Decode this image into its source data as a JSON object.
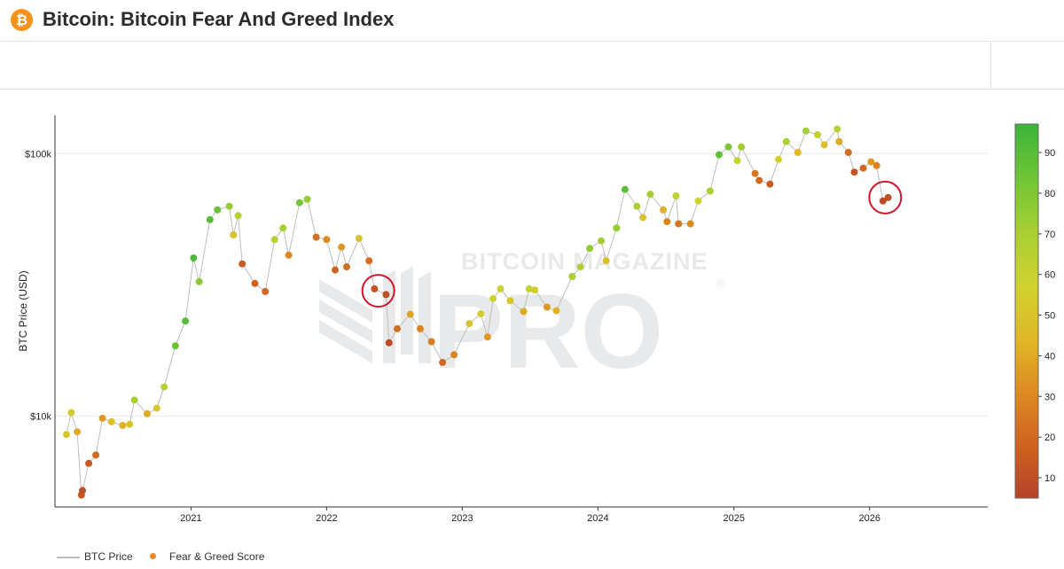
{
  "header": {
    "logo_glyph": "₿",
    "title": "Bitcoin: Bitcoin Fear And Greed Index"
  },
  "watermark": {
    "line1": "BITCOIN MAGAZINE",
    "line2": "PRO",
    "registered": "®"
  },
  "legend": {
    "items": [
      {
        "label": "BTC Price",
        "kind": "line",
        "color": "#bdbdbd"
      },
      {
        "label": "Fear & Greed Score",
        "kind": "marker",
        "color": "#e8862a"
      }
    ]
  },
  "colors": {
    "scale": [
      "#b5432a",
      "#d0621f",
      "#de8c22",
      "#e0b827",
      "#cfd231",
      "#a6cf33",
      "#6fc535",
      "#3bb33a"
    ],
    "annotation": "#d0152b",
    "grid": "#e8e8e8",
    "price_line": "#bdbdbd"
  },
  "chart_data": {
    "type": "scatter",
    "ylabel": "BTC Price (USD)",
    "y_scale": "log",
    "ylim": [
      4500,
      140000
    ],
    "xlim": [
      "2020-01-01",
      "2026-11-15"
    ],
    "y_ticks": [
      {
        "value": 10000,
        "label": "$10k"
      },
      {
        "value": 100000,
        "label": "$100k"
      }
    ],
    "x_ticks": [
      {
        "value": "2021-01-01",
        "label": "2021"
      },
      {
        "value": "2022-01-01",
        "label": "2022"
      },
      {
        "value": "2023-01-01",
        "label": "2023"
      },
      {
        "value": "2024-01-01",
        "label": "2024"
      },
      {
        "value": "2025-01-01",
        "label": "2025"
      },
      {
        "value": "2026-01-01",
        "label": "2026"
      }
    ],
    "colorbar": {
      "min": 5,
      "max": 97,
      "ticks": [
        10,
        20,
        30,
        40,
        50,
        60,
        70,
        80,
        90
      ]
    },
    "series": [
      {
        "name": "BTC Price",
        "points": [
          [
            "2020-02-01",
            8500,
            52
          ],
          [
            "2020-02-14",
            10300,
            55
          ],
          [
            "2020-03-01",
            8700,
            40
          ],
          [
            "2020-03-12",
            5000,
            12
          ],
          [
            "2020-03-15",
            5200,
            10
          ],
          [
            "2020-04-01",
            6600,
            14
          ],
          [
            "2020-04-20",
            7100,
            20
          ],
          [
            "2020-05-08",
            9800,
            35
          ],
          [
            "2020-06-01",
            9500,
            48
          ],
          [
            "2020-07-01",
            9200,
            42
          ],
          [
            "2020-07-20",
            9300,
            50
          ],
          [
            "2020-08-02",
            11500,
            70
          ],
          [
            "2020-09-05",
            10200,
            40
          ],
          [
            "2020-10-01",
            10700,
            52
          ],
          [
            "2020-10-21",
            12900,
            65
          ],
          [
            "2020-11-20",
            18500,
            85
          ],
          [
            "2020-12-17",
            23000,
            90
          ],
          [
            "2021-01-08",
            40000,
            92
          ],
          [
            "2021-01-23",
            32500,
            78
          ],
          [
            "2021-02-21",
            56000,
            90
          ],
          [
            "2021-03-13",
            61000,
            85
          ],
          [
            "2021-04-14",
            63000,
            75
          ],
          [
            "2021-04-25",
            49000,
            50
          ],
          [
            "2021-05-08",
            58000,
            66
          ],
          [
            "2021-05-19",
            38000,
            15
          ],
          [
            "2021-06-22",
            32000,
            18
          ],
          [
            "2021-07-20",
            29800,
            20
          ],
          [
            "2021-08-14",
            47000,
            65
          ],
          [
            "2021-09-06",
            52000,
            70
          ],
          [
            "2021-09-21",
            41000,
            30
          ],
          [
            "2021-10-20",
            65000,
            82
          ],
          [
            "2021-11-10",
            67000,
            75
          ],
          [
            "2021-12-04",
            48000,
            22
          ],
          [
            "2022-01-01",
            47000,
            30
          ],
          [
            "2022-01-24",
            36000,
            18
          ],
          [
            "2022-02-10",
            44000,
            35
          ],
          [
            "2022-02-24",
            37000,
            22
          ],
          [
            "2022-03-29",
            47500,
            50
          ],
          [
            "2022-04-25",
            39000,
            22
          ],
          [
            "2022-05-10",
            30500,
            12
          ],
          [
            "2022-06-10",
            29000,
            10
          ],
          [
            "2022-06-18",
            19000,
            8
          ],
          [
            "2022-07-10",
            21500,
            22
          ],
          [
            "2022-08-14",
            24400,
            38
          ],
          [
            "2022-09-10",
            21500,
            28
          ],
          [
            "2022-10-10",
            19200,
            26
          ],
          [
            "2022-11-09",
            16000,
            20
          ],
          [
            "2022-12-10",
            17100,
            28
          ],
          [
            "2023-01-20",
            22500,
            50
          ],
          [
            "2023-02-20",
            24500,
            55
          ],
          [
            "2023-03-10",
            20000,
            35
          ],
          [
            "2023-03-25",
            28000,
            58
          ],
          [
            "2023-04-14",
            30500,
            60
          ],
          [
            "2023-05-10",
            27500,
            50
          ],
          [
            "2023-06-15",
            25000,
            40
          ],
          [
            "2023-06-30",
            30500,
            62
          ],
          [
            "2023-07-15",
            30200,
            55
          ],
          [
            "2023-08-17",
            26000,
            35
          ],
          [
            "2023-09-11",
            25200,
            42
          ],
          [
            "2023-10-24",
            34000,
            70
          ],
          [
            "2023-11-15",
            37000,
            68
          ],
          [
            "2023-12-10",
            43500,
            75
          ],
          [
            "2024-01-10",
            46500,
            72
          ],
          [
            "2024-01-23",
            39000,
            48
          ],
          [
            "2024-02-20",
            52000,
            75
          ],
          [
            "2024-03-14",
            73000,
            88
          ],
          [
            "2024-04-15",
            63000,
            70
          ],
          [
            "2024-05-01",
            57000,
            50
          ],
          [
            "2024-05-21",
            70000,
            72
          ],
          [
            "2024-06-25",
            61000,
            42
          ],
          [
            "2024-07-05",
            55000,
            28
          ],
          [
            "2024-07-29",
            69000,
            62
          ],
          [
            "2024-08-05",
            54000,
            24
          ],
          [
            "2024-09-06",
            54000,
            30
          ],
          [
            "2024-09-27",
            66000,
            58
          ],
          [
            "2024-10-29",
            72000,
            70
          ],
          [
            "2024-11-22",
            99000,
            88
          ],
          [
            "2024-12-17",
            106000,
            82
          ],
          [
            "2025-01-10",
            94000,
            60
          ],
          [
            "2025-01-21",
            106000,
            72
          ],
          [
            "2025-02-27",
            84000,
            24
          ],
          [
            "2025-03-10",
            79000,
            20
          ],
          [
            "2025-04-08",
            76500,
            15
          ],
          [
            "2025-05-01",
            95000,
            55
          ],
          [
            "2025-05-22",
            111000,
            70
          ],
          [
            "2025-06-22",
            101000,
            45
          ],
          [
            "2025-07-14",
            122000,
            72
          ],
          [
            "2025-08-14",
            118000,
            62
          ],
          [
            "2025-09-01",
            108000,
            48
          ],
          [
            "2025-10-06",
            124000,
            65
          ],
          [
            "2025-10-11",
            111000,
            40
          ],
          [
            "2025-11-05",
            101000,
            22
          ],
          [
            "2025-11-21",
            85000,
            12
          ],
          [
            "2025-12-15",
            88000,
            20
          ],
          [
            "2026-01-05",
            93000,
            35
          ],
          [
            "2026-01-20",
            90000,
            28
          ],
          [
            "2026-02-06",
            66000,
            8
          ],
          [
            "2026-02-20",
            68000,
            10
          ]
        ]
      }
    ],
    "annotations": [
      {
        "type": "circle",
        "x": "2022-05-20",
        "y": 30000,
        "label": ""
      },
      {
        "type": "circle",
        "x": "2026-02-12",
        "y": 68000,
        "label": ""
      }
    ]
  }
}
